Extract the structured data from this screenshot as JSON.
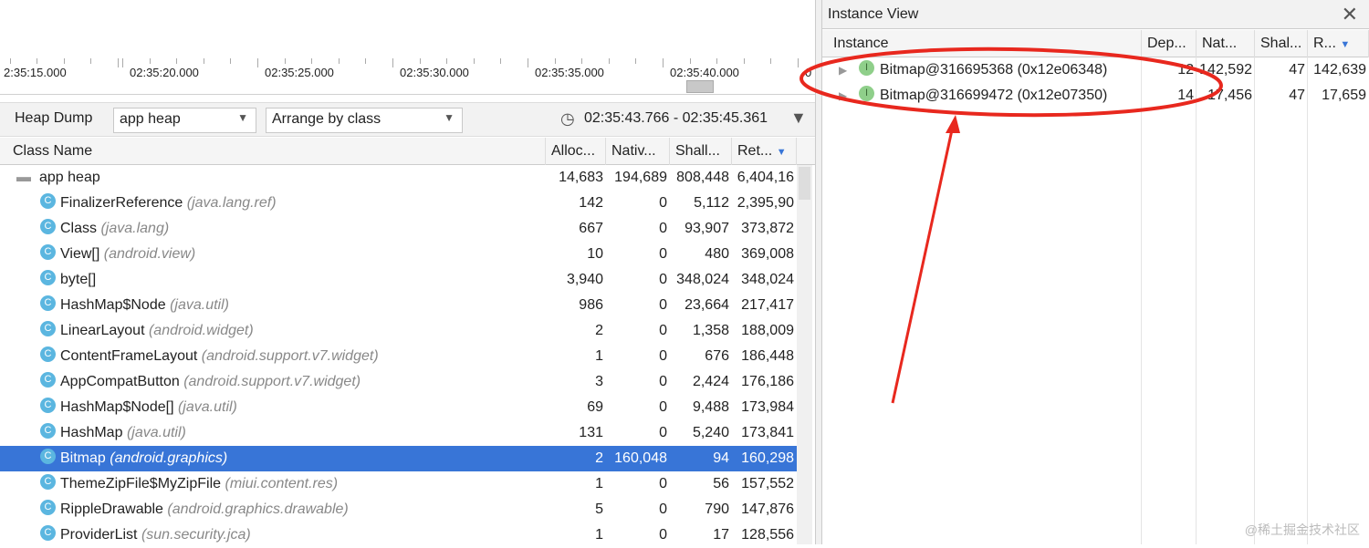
{
  "timeline": {
    "ticks": [
      "2:35:15.000",
      "02:35:20.000",
      "02:35:25.000",
      "02:35:30.000",
      "02:35:35.000",
      "02:35:40.000",
      "0"
    ]
  },
  "toolbar": {
    "heap_dump_label": "Heap Dump",
    "heap_select": "app heap",
    "arrange_select": "Arrange by class",
    "time_range": "02:35:43.766 - 02:35:45.361"
  },
  "table": {
    "columns": [
      "Class Name",
      "Alloc...",
      "Nativ...",
      "Shall...",
      "Ret..."
    ],
    "root": {
      "name": "app heap",
      "alloc": "14,683",
      "native": "194,689",
      "shallow": "808,448",
      "retained": "6,404,16"
    },
    "rows": [
      {
        "name": "FinalizerReference",
        "pkg": "(java.lang.ref)",
        "alloc": "142",
        "native": "0",
        "shallow": "5,112",
        "retained": "2,395,90"
      },
      {
        "name": "Class",
        "pkg": "(java.lang)",
        "alloc": "667",
        "native": "0",
        "shallow": "93,907",
        "retained": "373,872"
      },
      {
        "name": "View[]",
        "pkg": "(android.view)",
        "alloc": "10",
        "native": "0",
        "shallow": "480",
        "retained": "369,008"
      },
      {
        "name": "byte[]",
        "pkg": "",
        "alloc": "3,940",
        "native": "0",
        "shallow": "348,024",
        "retained": "348,024"
      },
      {
        "name": "HashMap$Node",
        "pkg": "(java.util)",
        "alloc": "986",
        "native": "0",
        "shallow": "23,664",
        "retained": "217,417"
      },
      {
        "name": "LinearLayout",
        "pkg": "(android.widget)",
        "alloc": "2",
        "native": "0",
        "shallow": "1,358",
        "retained": "188,009"
      },
      {
        "name": "ContentFrameLayout",
        "pkg": "(android.support.v7.widget)",
        "alloc": "1",
        "native": "0",
        "shallow": "676",
        "retained": "186,448"
      },
      {
        "name": "AppCompatButton",
        "pkg": "(android.support.v7.widget)",
        "alloc": "3",
        "native": "0",
        "shallow": "2,424",
        "retained": "176,186"
      },
      {
        "name": "HashMap$Node[]",
        "pkg": "(java.util)",
        "alloc": "69",
        "native": "0",
        "shallow": "9,488",
        "retained": "173,984"
      },
      {
        "name": "HashMap",
        "pkg": "(java.util)",
        "alloc": "131",
        "native": "0",
        "shallow": "5,240",
        "retained": "173,841"
      },
      {
        "name": "Bitmap",
        "pkg": "(android.graphics)",
        "alloc": "2",
        "native": "160,048",
        "shallow": "94",
        "retained": "160,298",
        "selected": true
      },
      {
        "name": "ThemeZipFile$MyZipFile",
        "pkg": "(miui.content.res)",
        "alloc": "1",
        "native": "0",
        "shallow": "56",
        "retained": "157,552"
      },
      {
        "name": "RippleDrawable",
        "pkg": "(android.graphics.drawable)",
        "alloc": "5",
        "native": "0",
        "shallow": "790",
        "retained": "147,876"
      },
      {
        "name": "ProviderList",
        "pkg": "(sun.security.jca)",
        "alloc": "1",
        "native": "0",
        "shallow": "17",
        "retained": "128,556"
      }
    ]
  },
  "instance_view": {
    "title": "Instance View",
    "columns": [
      "Instance",
      "Dep...",
      "Nat...",
      "Shal...",
      "R..."
    ],
    "rows": [
      {
        "name": "Bitmap@316695368 (0x12e06348)",
        "depth": "12",
        "native": "142,592",
        "shallow": "47",
        "retained": "142,639"
      },
      {
        "name": "Bitmap@316699472 (0x12e07350)",
        "depth": "14",
        "native": "17,456",
        "shallow": "47",
        "retained": "17,659"
      }
    ]
  },
  "colors": {
    "selection": "#3875d7",
    "annotation": "#e8281e",
    "class_icon": "#5bb6e0",
    "instance_icon": "#8fcf8a"
  },
  "watermark": "@稀土掘金技术社区"
}
